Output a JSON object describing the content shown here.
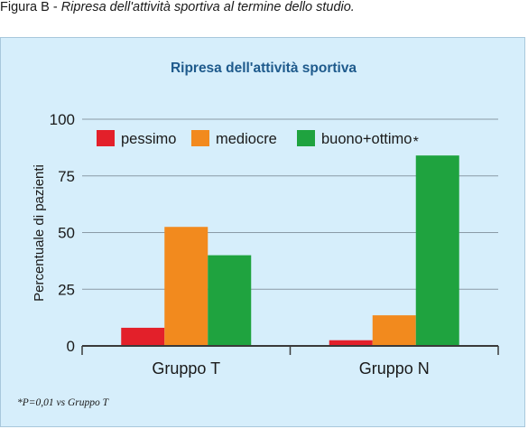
{
  "figure_caption": {
    "prefix": "Figura B - ",
    "text": "Ripresa dell'attività sportiva al termine dello studio."
  },
  "chart_data": {
    "type": "bar",
    "title": "Ripresa dell'attività sportiva",
    "ylabel": "Percentuale di pazienti",
    "ylim": [
      0,
      100
    ],
    "yticks": [
      0,
      25,
      50,
      75,
      100
    ],
    "grid": true,
    "legend_position": "top",
    "categories": [
      "Gruppo T",
      "Gruppo N"
    ],
    "series": [
      {
        "name": "pessimo",
        "color": "#e3202a",
        "values": [
          8,
          2.5
        ]
      },
      {
        "name": "mediocre",
        "color": "#f28a1e",
        "values": [
          52.5,
          13.5
        ]
      },
      {
        "name": "buono+ottimo",
        "color": "#1fa33f",
        "values": [
          40,
          84
        ]
      }
    ],
    "annotations": [
      {
        "text": "*",
        "category": "Gruppo N",
        "series": "buono+ottimo"
      }
    ],
    "footnote": "*P=0,01 vs Gruppo T"
  }
}
